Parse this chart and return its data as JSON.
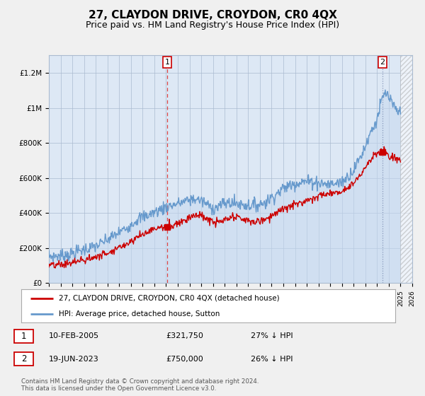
{
  "title": "27, CLAYDON DRIVE, CROYDON, CR0 4QX",
  "subtitle": "Price paid vs. HM Land Registry's House Price Index (HPI)",
  "title_fontsize": 11,
  "subtitle_fontsize": 9,
  "background_color": "#f0f0f0",
  "plot_bg_color": "#dde8f5",
  "grid_color": "#aabbd0",
  "hpi_color": "#6699cc",
  "hpi_fill_color": "#c5d8ef",
  "price_color": "#cc0000",
  "marker_color": "#cc0000",
  "dashed_line_color": "#dd4444",
  "ylim": [
    0,
    1300000
  ],
  "yticks": [
    0,
    200000,
    400000,
    600000,
    800000,
    1000000,
    1200000
  ],
  "ytick_labels": [
    "£0",
    "£200K",
    "£400K",
    "£600K",
    "£800K",
    "£1M",
    "£1.2M"
  ],
  "year_start": 1995,
  "year_end": 2026,
  "sale1_year": 2005.1,
  "sale1_price": 321750,
  "sale2_year": 2023.46,
  "sale2_price": 750000,
  "legend_line1": "27, CLAYDON DRIVE, CROYDON, CR0 4QX (detached house)",
  "legend_line2": "HPI: Average price, detached house, Sutton",
  "sale1_date": "10-FEB-2005",
  "sale1_price_str": "£321,750",
  "sale1_hpi": "27% ↓ HPI",
  "sale2_date": "19-JUN-2023",
  "sale2_price_str": "£750,000",
  "sale2_hpi": "26% ↓ HPI",
  "footer": "Contains HM Land Registry data © Crown copyright and database right 2024.\nThis data is licensed under the Open Government Licence v3.0."
}
